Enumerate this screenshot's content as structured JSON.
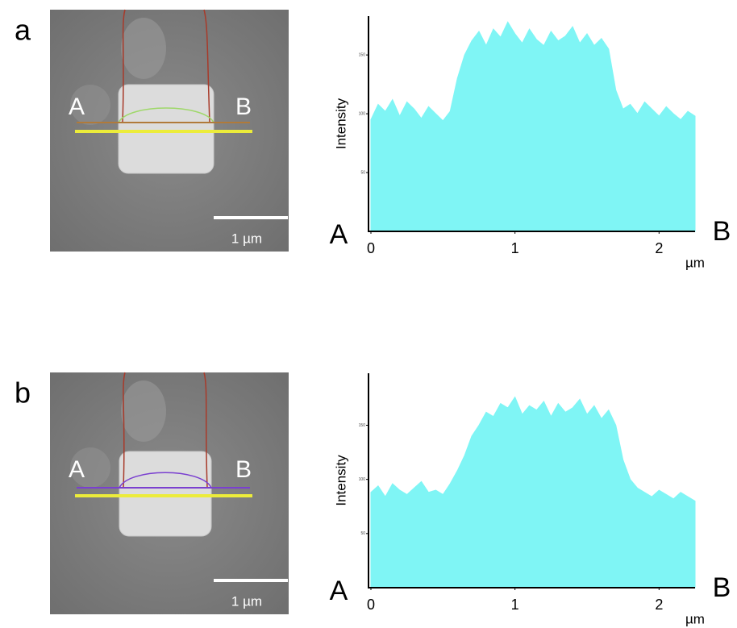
{
  "panels": [
    {
      "label": "a",
      "image_labels": {
        "point_a": "A",
        "point_b": "B",
        "scale_bar": "1 µm"
      }
    },
    {
      "label": "b",
      "image_labels": {
        "point_a": "A",
        "point_b": "B",
        "scale_bar": "1 µm"
      }
    }
  ],
  "chart_data": [
    {
      "type": "area",
      "y_label": "Intensity",
      "x_unit": "µm",
      "start_label": "A",
      "end_label": "B",
      "color": "#7ff5f5",
      "x": [
        0,
        0.05,
        0.1,
        0.15,
        0.2,
        0.25,
        0.3,
        0.35,
        0.4,
        0.45,
        0.5,
        0.55,
        0.6,
        0.65,
        0.7,
        0.75,
        0.8,
        0.85,
        0.9,
        0.95,
        1,
        1.05,
        1.1,
        1.15,
        1.2,
        1.25,
        1.3,
        1.35,
        1.4,
        1.45,
        1.5,
        1.55,
        1.6,
        1.65,
        1.7,
        1.75,
        1.8,
        1.85,
        1.9,
        1.95,
        2,
        2.05,
        2.1,
        2.15,
        2.2,
        2.25
      ],
      "values": [
        95,
        108,
        102,
        112,
        98,
        110,
        104,
        96,
        106,
        100,
        94,
        102,
        130,
        150,
        162,
        170,
        158,
        172,
        165,
        178,
        168,
        160,
        172,
        163,
        158,
        170,
        162,
        166,
        174,
        160,
        168,
        158,
        164,
        155,
        120,
        104,
        108,
        100,
        110,
        104,
        98,
        106,
        100,
        95,
        102,
        98
      ],
      "xlim": [
        0,
        2.25
      ],
      "ylim": [
        0,
        183
      ],
      "xticks": [
        0,
        1,
        2
      ],
      "yticks": [
        50,
        100,
        150
      ]
    },
    {
      "type": "area",
      "y_label": "Intensity",
      "x_unit": "µm",
      "start_label": "A",
      "end_label": "B",
      "color": "#7ff5f5",
      "x": [
        0,
        0.05,
        0.1,
        0.15,
        0.2,
        0.25,
        0.3,
        0.35,
        0.4,
        0.45,
        0.5,
        0.55,
        0.6,
        0.65,
        0.7,
        0.75,
        0.8,
        0.85,
        0.9,
        0.95,
        1,
        1.05,
        1.1,
        1.15,
        1.2,
        1.25,
        1.3,
        1.35,
        1.4,
        1.45,
        1.5,
        1.55,
        1.6,
        1.65,
        1.7,
        1.75,
        1.8,
        1.85,
        1.9,
        1.95,
        2,
        2.05,
        2.1,
        2.15,
        2.2,
        2.25
      ],
      "values": [
        88,
        94,
        84,
        96,
        90,
        86,
        92,
        98,
        88,
        90,
        86,
        96,
        108,
        122,
        140,
        150,
        162,
        158,
        170,
        166,
        176,
        160,
        168,
        164,
        172,
        158,
        170,
        162,
        166,
        174,
        160,
        168,
        156,
        164,
        150,
        118,
        100,
        92,
        88,
        84,
        90,
        86,
        82,
        88,
        84,
        80
      ],
      "xlim": [
        0,
        2.25
      ],
      "ylim": [
        0,
        198
      ],
      "xticks": [
        0,
        1,
        2
      ],
      "yticks": [
        50,
        100,
        150
      ]
    }
  ]
}
